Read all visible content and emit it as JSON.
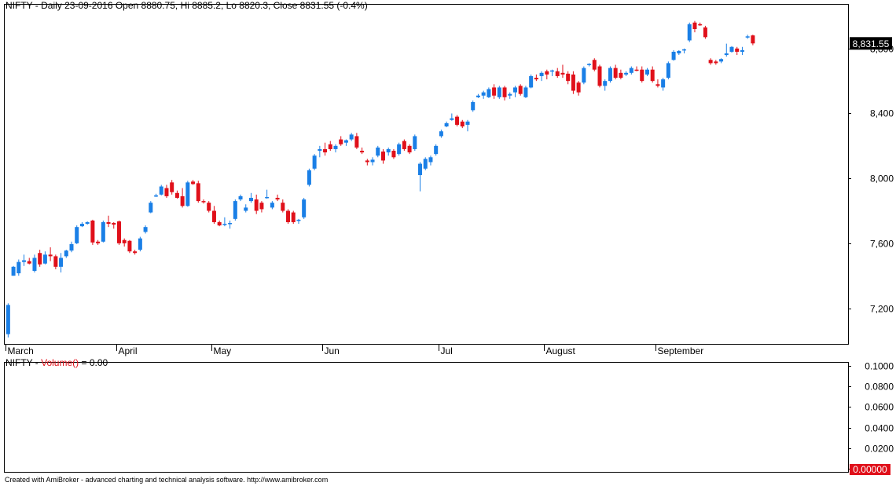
{
  "price_pane": {
    "header": "NIFTY - Daily 23-09-2016 Open 8880.75, Hi 8885.2, Lo 8820.3, Close 8831.55 (-0.4%)",
    "last_price_label": "8,831.55",
    "last_price_bg": "#000000"
  },
  "volume_pane": {
    "symbol": "NIFTY",
    "dash": " - ",
    "indicator": "Volume()",
    "value_text": " = 0.00",
    "indicator_color": "#e0101a",
    "last_value_label": "0.00000",
    "last_value_bg": "#e0101a"
  },
  "footer": "Created with AmiBroker - advanced charting and technical analysis software. http://www.amibroker.com",
  "colors": {
    "up": "#1a7fe6",
    "down": "#e0101a",
    "axis": "#000000"
  },
  "chart_data": [
    {
      "type": "candlestick",
      "series_name": "NIFTY",
      "ylim": [
        6980,
        9070
      ],
      "y_ticks": [
        7200,
        7600,
        8000,
        8400,
        8800
      ],
      "y_tick_labels": [
        "7,200",
        "7,600",
        "8,000",
        "8,400",
        "8,800"
      ],
      "x_month_labels": [
        {
          "label": "March",
          "index": 0
        },
        {
          "label": "April",
          "index": 21
        },
        {
          "label": "May",
          "index": 39
        },
        {
          "label": "Jun",
          "index": 60
        },
        {
          "label": "Jul",
          "index": 82
        },
        {
          "label": "August",
          "index": 102
        },
        {
          "label": "September",
          "index": 123
        }
      ],
      "total_slots": 152,
      "candles": [
        {
          "o": 7040,
          "h": 7230,
          "l": 7020,
          "c": 7220
        },
        {
          "o": 7400,
          "h": 7460,
          "l": 7400,
          "c": 7455
        },
        {
          "o": 7415,
          "h": 7500,
          "l": 7400,
          "c": 7485
        },
        {
          "o": 7485,
          "h": 7530,
          "l": 7460,
          "c": 7495
        },
        {
          "o": 7490,
          "h": 7510,
          "l": 7470,
          "c": 7475
        },
        {
          "o": 7430,
          "h": 7530,
          "l": 7420,
          "c": 7510
        },
        {
          "o": 7540,
          "h": 7560,
          "l": 7455,
          "c": 7470
        },
        {
          "o": 7475,
          "h": 7550,
          "l": 7470,
          "c": 7530
        },
        {
          "o": 7530,
          "h": 7575,
          "l": 7490,
          "c": 7520
        },
        {
          "o": 7520,
          "h": 7530,
          "l": 7440,
          "c": 7455
        },
        {
          "o": 7455,
          "h": 7540,
          "l": 7420,
          "c": 7510
        },
        {
          "o": 7520,
          "h": 7560,
          "l": 7510,
          "c": 7555
        },
        {
          "o": 7555,
          "h": 7610,
          "l": 7545,
          "c": 7595
        },
        {
          "o": 7600,
          "h": 7710,
          "l": 7595,
          "c": 7700
        },
        {
          "o": 7705,
          "h": 7730,
          "l": 7700,
          "c": 7720
        },
        {
          "o": 7720,
          "h": 7735,
          "l": 7715,
          "c": 7730
        },
        {
          "o": 7740,
          "h": 7745,
          "l": 7590,
          "c": 7605
        },
        {
          "o": 7610,
          "h": 7620,
          "l": 7590,
          "c": 7600
        },
        {
          "o": 7610,
          "h": 7740,
          "l": 7605,
          "c": 7730
        },
        {
          "o": 7730,
          "h": 7770,
          "l": 7700,
          "c": 7720
        },
        {
          "o": 7725,
          "h": 7730,
          "l": 7690,
          "c": 7715
        },
        {
          "o": 7735,
          "h": 7740,
          "l": 7590,
          "c": 7600
        },
        {
          "o": 7620,
          "h": 7630,
          "l": 7580,
          "c": 7600
        },
        {
          "o": 7615,
          "h": 7620,
          "l": 7540,
          "c": 7550
        },
        {
          "o": 7550,
          "h": 7560,
          "l": 7530,
          "c": 7540
        },
        {
          "o": 7560,
          "h": 7640,
          "l": 7550,
          "c": 7630
        },
        {
          "o": 7670,
          "h": 7710,
          "l": 7660,
          "c": 7700
        },
        {
          "o": 7790,
          "h": 7860,
          "l": 7785,
          "c": 7850
        },
        {
          "o": 7895,
          "h": 7905,
          "l": 7885,
          "c": 7895
        },
        {
          "o": 7900,
          "h": 7960,
          "l": 7895,
          "c": 7950
        },
        {
          "o": 7940,
          "h": 7960,
          "l": 7880,
          "c": 7890
        },
        {
          "o": 7975,
          "h": 7990,
          "l": 7900,
          "c": 7915
        },
        {
          "o": 7910,
          "h": 7925,
          "l": 7875,
          "c": 7880
        },
        {
          "o": 7890,
          "h": 7940,
          "l": 7820,
          "c": 7830
        },
        {
          "o": 7830,
          "h": 7985,
          "l": 7825,
          "c": 7975
        },
        {
          "o": 7980,
          "h": 7990,
          "l": 7960,
          "c": 7965
        },
        {
          "o": 7970,
          "h": 7985,
          "l": 7850,
          "c": 7860
        },
        {
          "o": 7860,
          "h": 7870,
          "l": 7845,
          "c": 7855
        },
        {
          "o": 7850,
          "h": 7860,
          "l": 7790,
          "c": 7800
        },
        {
          "o": 7800,
          "h": 7830,
          "l": 7720,
          "c": 7730
        },
        {
          "o": 7730,
          "h": 7740,
          "l": 7705,
          "c": 7710
        },
        {
          "o": 7715,
          "h": 7760,
          "l": 7705,
          "c": 7720
        },
        {
          "o": 7720,
          "h": 7740,
          "l": 7690,
          "c": 7725
        },
        {
          "o": 7750,
          "h": 7870,
          "l": 7740,
          "c": 7860
        },
        {
          "o": 7870,
          "h": 7900,
          "l": 7860,
          "c": 7890
        },
        {
          "o": 7800,
          "h": 7840,
          "l": 7790,
          "c": 7820
        },
        {
          "o": 7860,
          "h": 7910,
          "l": 7850,
          "c": 7880
        },
        {
          "o": 7870,
          "h": 7900,
          "l": 7780,
          "c": 7800
        },
        {
          "o": 7850,
          "h": 7860,
          "l": 7790,
          "c": 7810
        },
        {
          "o": 7880,
          "h": 7930,
          "l": 7875,
          "c": 7885
        },
        {
          "o": 7820,
          "h": 7860,
          "l": 7810,
          "c": 7850
        },
        {
          "o": 7880,
          "h": 7900,
          "l": 7860,
          "c": 7870
        },
        {
          "o": 7850,
          "h": 7870,
          "l": 7790,
          "c": 7800
        },
        {
          "o": 7800,
          "h": 7810,
          "l": 7720,
          "c": 7730
        },
        {
          "o": 7790,
          "h": 7800,
          "l": 7720,
          "c": 7730
        },
        {
          "o": 7740,
          "h": 7750,
          "l": 7720,
          "c": 7745
        },
        {
          "o": 7760,
          "h": 7880,
          "l": 7750,
          "c": 7870
        },
        {
          "o": 7960,
          "h": 8060,
          "l": 7950,
          "c": 8050
        },
        {
          "o": 8060,
          "h": 8150,
          "l": 8050,
          "c": 8140
        },
        {
          "o": 8170,
          "h": 8200,
          "l": 8130,
          "c": 8180
        },
        {
          "o": 8180,
          "h": 8220,
          "l": 8140,
          "c": 8160
        },
        {
          "o": 8210,
          "h": 8230,
          "l": 8170,
          "c": 8180
        },
        {
          "o": 8180,
          "h": 8210,
          "l": 8160,
          "c": 8200
        },
        {
          "o": 8240,
          "h": 8260,
          "l": 8200,
          "c": 8210
        },
        {
          "o": 8220,
          "h": 8240,
          "l": 8200,
          "c": 8235
        },
        {
          "o": 8240,
          "h": 8280,
          "l": 8230,
          "c": 8270
        },
        {
          "o": 8260,
          "h": 8280,
          "l": 8180,
          "c": 8190
        },
        {
          "o": 8170,
          "h": 8190,
          "l": 8150,
          "c": 8160
        },
        {
          "o": 8110,
          "h": 8120,
          "l": 8080,
          "c": 8100
        },
        {
          "o": 8100,
          "h": 8130,
          "l": 8080,
          "c": 8115
        },
        {
          "o": 8140,
          "h": 8200,
          "l": 8130,
          "c": 8190
        },
        {
          "o": 8165,
          "h": 8180,
          "l": 8090,
          "c": 8110
        },
        {
          "o": 8160,
          "h": 8190,
          "l": 8140,
          "c": 8180
        },
        {
          "o": 8170,
          "h": 8180,
          "l": 8120,
          "c": 8130
        },
        {
          "o": 8150,
          "h": 8220,
          "l": 8140,
          "c": 8210
        },
        {
          "o": 8230,
          "h": 8240,
          "l": 8170,
          "c": 8180
        },
        {
          "o": 8200,
          "h": 8210,
          "l": 8150,
          "c": 8160
        },
        {
          "o": 8180,
          "h": 8270,
          "l": 8170,
          "c": 8260
        },
        {
          "o": 8020,
          "h": 8100,
          "l": 7920,
          "c": 8090
        },
        {
          "o": 8060,
          "h": 8130,
          "l": 8050,
          "c": 8120
        },
        {
          "o": 8100,
          "h": 8140,
          "l": 8080,
          "c": 8130
        },
        {
          "o": 8150,
          "h": 8210,
          "l": 8140,
          "c": 8200
        },
        {
          "o": 8260,
          "h": 8300,
          "l": 8250,
          "c": 8290
        },
        {
          "o": 8320,
          "h": 8350,
          "l": 8315,
          "c": 8340
        },
        {
          "o": 8360,
          "h": 8400,
          "l": 8355,
          "c": 8370
        },
        {
          "o": 8380,
          "h": 8390,
          "l": 8320,
          "c": 8330
        },
        {
          "o": 8350,
          "h": 8360,
          "l": 8310,
          "c": 8320
        },
        {
          "o": 8330,
          "h": 8360,
          "l": 8290,
          "c": 8350
        },
        {
          "o": 8420,
          "h": 8480,
          "l": 8410,
          "c": 8470
        },
        {
          "o": 8500,
          "h": 8520,
          "l": 8495,
          "c": 8510
        },
        {
          "o": 8510,
          "h": 8540,
          "l": 8490,
          "c": 8530
        },
        {
          "o": 8500,
          "h": 8560,
          "l": 8495,
          "c": 8550
        },
        {
          "o": 8560,
          "h": 8580,
          "l": 8490,
          "c": 8510
        },
        {
          "o": 8500,
          "h": 8570,
          "l": 8490,
          "c": 8560
        },
        {
          "o": 8560,
          "h": 8570,
          "l": 8480,
          "c": 8500
        },
        {
          "o": 8510,
          "h": 8530,
          "l": 8490,
          "c": 8520
        },
        {
          "o": 8530,
          "h": 8570,
          "l": 8500,
          "c": 8560
        },
        {
          "o": 8570,
          "h": 8580,
          "l": 8510,
          "c": 8520
        },
        {
          "o": 8500,
          "h": 8570,
          "l": 8495,
          "c": 8560
        },
        {
          "o": 8560,
          "h": 8640,
          "l": 8555,
          "c": 8630
        },
        {
          "o": 8620,
          "h": 8640,
          "l": 8600,
          "c": 8610
        },
        {
          "o": 8630,
          "h": 8660,
          "l": 8600,
          "c": 8650
        },
        {
          "o": 8660,
          "h": 8670,
          "l": 8610,
          "c": 8640
        },
        {
          "o": 8660,
          "h": 8670,
          "l": 8630,
          "c": 8665
        },
        {
          "o": 8660,
          "h": 8680,
          "l": 8620,
          "c": 8630
        },
        {
          "o": 8650,
          "h": 8700,
          "l": 8620,
          "c": 8640
        },
        {
          "o": 8645,
          "h": 8660,
          "l": 8580,
          "c": 8600
        },
        {
          "o": 8640,
          "h": 8660,
          "l": 8520,
          "c": 8540
        },
        {
          "o": 8590,
          "h": 8600,
          "l": 8510,
          "c": 8530
        },
        {
          "o": 8590,
          "h": 8690,
          "l": 8580,
          "c": 8680
        },
        {
          "o": 8700,
          "h": 8710,
          "l": 8690,
          "c": 8705
        },
        {
          "o": 8730,
          "h": 8740,
          "l": 8660,
          "c": 8670
        },
        {
          "o": 8690,
          "h": 8700,
          "l": 8560,
          "c": 8570
        },
        {
          "o": 8570,
          "h": 8610,
          "l": 8540,
          "c": 8600
        },
        {
          "o": 8600,
          "h": 8690,
          "l": 8590,
          "c": 8680
        },
        {
          "o": 8680,
          "h": 8700,
          "l": 8610,
          "c": 8620
        },
        {
          "o": 8650,
          "h": 8670,
          "l": 8610,
          "c": 8620
        },
        {
          "o": 8640,
          "h": 8660,
          "l": 8630,
          "c": 8650
        },
        {
          "o": 8650,
          "h": 8690,
          "l": 8640,
          "c": 8680
        },
        {
          "o": 8670,
          "h": 8690,
          "l": 8660,
          "c": 8665
        },
        {
          "o": 8670,
          "h": 8690,
          "l": 8590,
          "c": 8600
        },
        {
          "o": 8640,
          "h": 8680,
          "l": 8630,
          "c": 8670
        },
        {
          "o": 8670,
          "h": 8690,
          "l": 8590,
          "c": 8600
        },
        {
          "o": 8580,
          "h": 8610,
          "l": 8560,
          "c": 8570
        },
        {
          "o": 8560,
          "h": 8620,
          "l": 8540,
          "c": 8610
        },
        {
          "o": 8620,
          "h": 8720,
          "l": 8610,
          "c": 8710
        },
        {
          "o": 8730,
          "h": 8790,
          "l": 8725,
          "c": 8780
        },
        {
          "o": 8770,
          "h": 8790,
          "l": 8760,
          "c": 8785
        },
        {
          "o": 8790,
          "h": 8800,
          "l": 8770,
          "c": 8795
        },
        {
          "o": 8850,
          "h": 8960,
          "l": 8840,
          "c": 8950
        },
        {
          "o": 8960,
          "h": 8970,
          "l": 8900,
          "c": 8920
        },
        {
          "o": 8950,
          "h": 8960,
          "l": 8940,
          "c": 8945
        },
        {
          "o": 8930,
          "h": 8940,
          "l": 8860,
          "c": 8870
        },
        {
          "o": 8730,
          "h": 8740,
          "l": 8700,
          "c": 8710
        },
        {
          "o": 8720,
          "h": 8730,
          "l": 8700,
          "c": 8710
        },
        {
          "o": 8720,
          "h": 8740,
          "l": 8710,
          "c": 8735
        },
        {
          "o": 8760,
          "h": 8830,
          "l": 8750,
          "c": 8770
        },
        {
          "o": 8780,
          "h": 8815,
          "l": 8775,
          "c": 8810
        },
        {
          "o": 8800,
          "h": 8810,
          "l": 8760,
          "c": 8780
        },
        {
          "o": 8780,
          "h": 8810,
          "l": 8760,
          "c": 8790
        },
        {
          "o": 8870,
          "h": 8885,
          "l": 8860,
          "c": 8875
        },
        {
          "o": 8880.75,
          "h": 8885.2,
          "l": 8820.3,
          "c": 8831.55
        }
      ]
    },
    {
      "type": "bar",
      "series_name": "Volume()",
      "ylim": [
        0,
        0.1
      ],
      "y_ticks": [
        0,
        0.02,
        0.04,
        0.06,
        0.08,
        0.1
      ],
      "y_tick_labels": [
        "0",
        "0.0200",
        "0.0400",
        "0.0600",
        "0.0800",
        "0.1000"
      ],
      "values": []
    }
  ]
}
